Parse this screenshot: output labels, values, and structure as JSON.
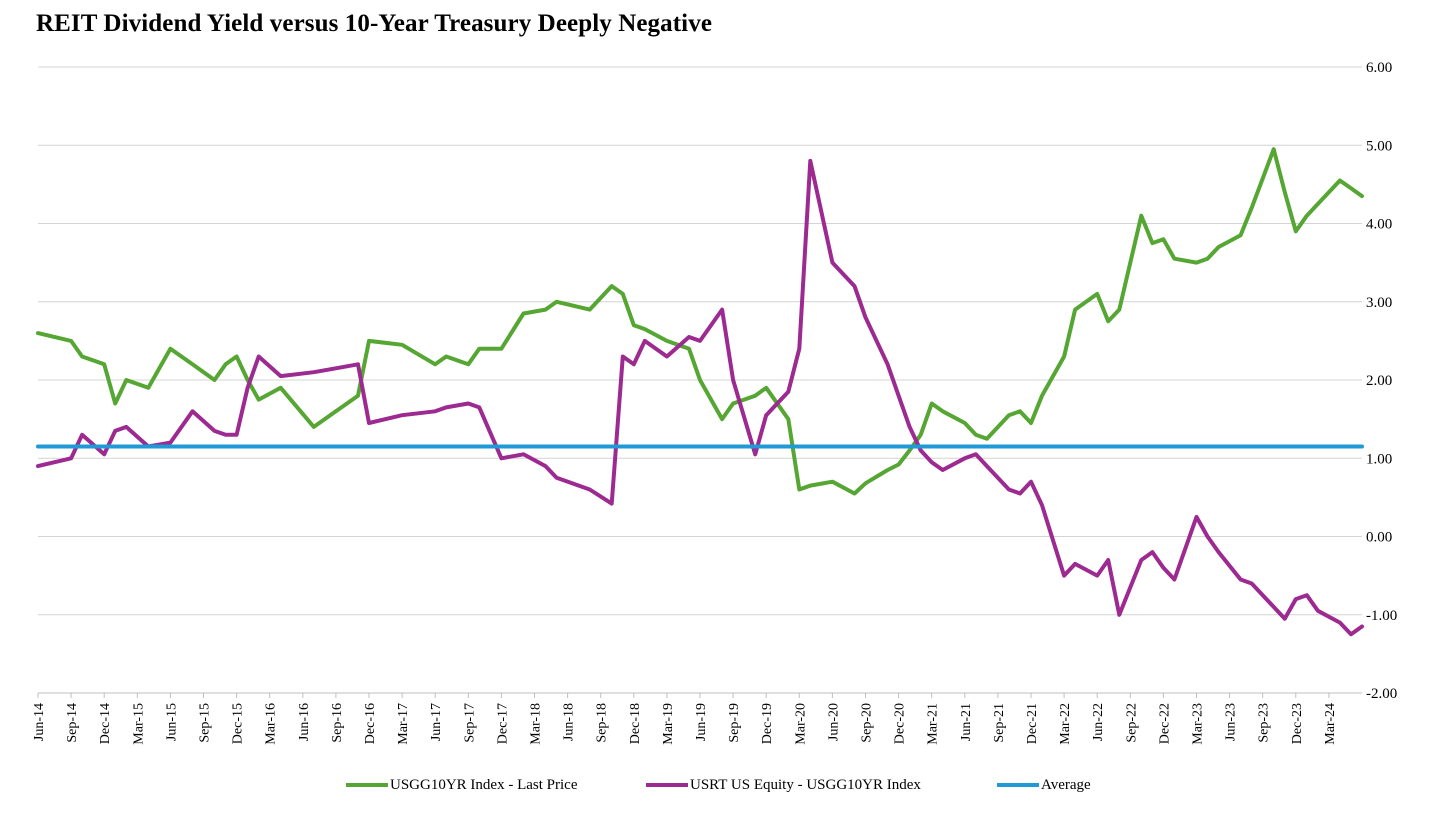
{
  "chart_data": {
    "type": "line",
    "title": "REIT Dividend Yield versus 10-Year Treasury Deeply Negative",
    "xlabel": "",
    "ylabel": "",
    "y_axis_position": "right",
    "ylim": [
      -2.0,
      6.0
    ],
    "y_ticks": [
      "6.00",
      "5.00",
      "4.00",
      "3.00",
      "2.00",
      "1.00",
      "0.00",
      "-1.00",
      "-2.00"
    ],
    "y_tick_values": [
      6,
      5,
      4,
      3,
      2,
      1,
      0,
      -1,
      -2
    ],
    "x_range": [
      "2014-06",
      "2024-06"
    ],
    "x_ticks": [
      "Jun-14",
      "Sep-14",
      "Dec-14",
      "Mar-15",
      "Jun-15",
      "Sep-15",
      "Dec-15",
      "Mar-16",
      "Jun-16",
      "Sep-16",
      "Dec-16",
      "Mar-17",
      "Jun-17",
      "Sep-17",
      "Dec-17",
      "Mar-18",
      "Jun-18",
      "Sep-18",
      "Dec-18",
      "Mar-19",
      "Jun-19",
      "Sep-19",
      "Dec-19",
      "Mar-20",
      "Jun-20",
      "Sep-20",
      "Dec-20",
      "Mar-21",
      "Jun-21",
      "Sep-21",
      "Dec-21",
      "Mar-22",
      "Jun-22",
      "Sep-22",
      "Dec-22",
      "Mar-23",
      "Jun-23",
      "Sep-23",
      "Dec-23",
      "Mar-24"
    ],
    "grid": "horizontal",
    "legend_position": "bottom",
    "series": [
      {
        "name": "USGG10YR Index - Last Price",
        "color": "#55a632",
        "x": [
          "2014-06",
          "2014-09",
          "2014-10",
          "2014-12",
          "2015-01",
          "2015-02",
          "2015-04",
          "2015-06",
          "2015-08",
          "2015-10",
          "2015-11",
          "2015-12",
          "2016-01",
          "2016-02",
          "2016-04",
          "2016-07",
          "2016-09",
          "2016-11",
          "2016-12",
          "2017-03",
          "2017-06",
          "2017-07",
          "2017-09",
          "2017-10",
          "2017-12",
          "2018-02",
          "2018-04",
          "2018-05",
          "2018-08",
          "2018-10",
          "2018-11",
          "2018-12",
          "2019-01",
          "2019-03",
          "2019-05",
          "2019-06",
          "2019-08",
          "2019-09",
          "2019-11",
          "2019-12",
          "2020-02",
          "2020-03",
          "2020-04",
          "2020-06",
          "2020-08",
          "2020-09",
          "2020-11",
          "2020-12",
          "2021-01",
          "2021-02",
          "2021-03",
          "2021-04",
          "2021-06",
          "2021-07",
          "2021-08",
          "2021-10",
          "2021-11",
          "2021-12",
          "2022-01",
          "2022-03",
          "2022-04",
          "2022-06",
          "2022-07",
          "2022-08",
          "2022-10",
          "2022-11",
          "2022-12",
          "2023-01",
          "2023-03",
          "2023-04",
          "2023-05",
          "2023-07",
          "2023-08",
          "2023-10",
          "2023-11",
          "2023-12",
          "2024-01",
          "2024-02",
          "2024-04",
          "2024-05",
          "2024-06"
        ],
        "y": [
          2.6,
          2.5,
          2.3,
          2.2,
          1.7,
          2.0,
          1.9,
          2.4,
          2.2,
          2.0,
          2.2,
          2.3,
          2.0,
          1.75,
          1.9,
          1.4,
          1.6,
          1.8,
          2.5,
          2.45,
          2.2,
          2.3,
          2.2,
          2.4,
          2.4,
          2.85,
          2.9,
          3.0,
          2.9,
          3.2,
          3.1,
          2.7,
          2.65,
          2.5,
          2.4,
          2.0,
          1.5,
          1.7,
          1.8,
          1.9,
          1.5,
          0.6,
          0.65,
          0.7,
          0.55,
          0.68,
          0.85,
          0.92,
          1.1,
          1.3,
          1.7,
          1.6,
          1.45,
          1.3,
          1.25,
          1.55,
          1.6,
          1.45,
          1.8,
          2.3,
          2.9,
          3.1,
          2.75,
          2.9,
          4.1,
          3.75,
          3.8,
          3.55,
          3.5,
          3.55,
          3.7,
          3.85,
          4.2,
          4.95,
          4.4,
          3.9,
          4.1,
          4.25,
          4.55,
          4.45,
          4.35
        ]
      },
      {
        "name": "USRT US Equity - USGG10YR Index",
        "color": "#9c2a91",
        "x": [
          "2014-06",
          "2014-09",
          "2014-10",
          "2014-12",
          "2015-01",
          "2015-02",
          "2015-04",
          "2015-06",
          "2015-08",
          "2015-10",
          "2015-11",
          "2015-12",
          "2016-01",
          "2016-02",
          "2016-04",
          "2016-07",
          "2016-09",
          "2016-11",
          "2016-12",
          "2017-03",
          "2017-06",
          "2017-07",
          "2017-09",
          "2017-10",
          "2017-12",
          "2018-02",
          "2018-04",
          "2018-05",
          "2018-08",
          "2018-10",
          "2018-11",
          "2018-12",
          "2019-01",
          "2019-03",
          "2019-05",
          "2019-06",
          "2019-08",
          "2019-09",
          "2019-11",
          "2019-12",
          "2020-02",
          "2020-03",
          "2020-04",
          "2020-06",
          "2020-08",
          "2020-09",
          "2020-11",
          "2020-12",
          "2021-01",
          "2021-02",
          "2021-03",
          "2021-04",
          "2021-06",
          "2021-07",
          "2021-08",
          "2021-10",
          "2021-11",
          "2021-12",
          "2022-01",
          "2022-03",
          "2022-04",
          "2022-06",
          "2022-07",
          "2022-08",
          "2022-10",
          "2022-11",
          "2022-12",
          "2023-01",
          "2023-03",
          "2023-04",
          "2023-05",
          "2023-07",
          "2023-08",
          "2023-10",
          "2023-11",
          "2023-12",
          "2024-01",
          "2024-02",
          "2024-04",
          "2024-05",
          "2024-06"
        ],
        "y": [
          0.9,
          1.0,
          1.3,
          1.05,
          1.35,
          1.4,
          1.15,
          1.2,
          1.6,
          1.35,
          1.3,
          1.3,
          1.9,
          2.3,
          2.05,
          2.1,
          2.15,
          2.2,
          1.45,
          1.55,
          1.6,
          1.65,
          1.7,
          1.65,
          1.0,
          1.05,
          0.9,
          0.75,
          0.6,
          0.42,
          2.3,
          2.2,
          2.5,
          2.3,
          2.55,
          2.5,
          2.9,
          2.0,
          1.05,
          1.55,
          1.85,
          2.4,
          4.8,
          3.5,
          3.2,
          2.8,
          2.2,
          1.8,
          1.4,
          1.1,
          0.95,
          0.85,
          1.0,
          1.05,
          0.9,
          0.6,
          0.55,
          0.7,
          0.4,
          -0.5,
          -0.35,
          -0.5,
          -0.3,
          -1.0,
          -0.3,
          -0.2,
          -0.4,
          -0.55,
          0.25,
          0.0,
          -0.2,
          -0.55,
          -0.6,
          -0.9,
          -1.05,
          -0.8,
          -0.75,
          -0.95,
          -1.1,
          -1.25,
          -1.15
        ]
      },
      {
        "name": "Average",
        "color": "#1f9ad6",
        "x": [
          "2014-06",
          "2024-06"
        ],
        "y": [
          1.15,
          1.15
        ]
      }
    ]
  }
}
